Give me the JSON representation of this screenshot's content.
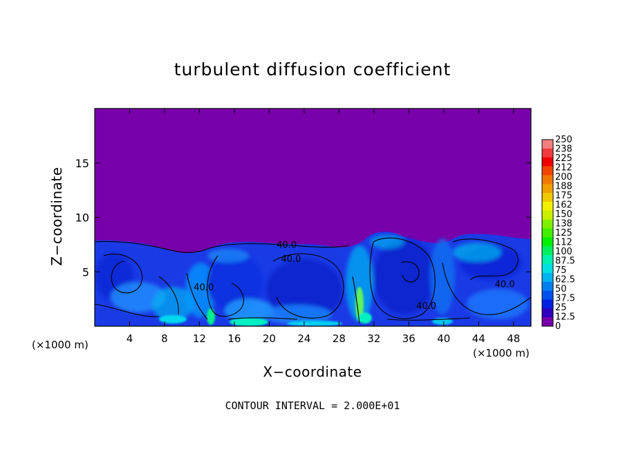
{
  "chart_data": {
    "type": "heatmap",
    "title": "turbulent diffusion coefficient",
    "xlabel": "X−coordinate",
    "ylabel": "Z−coordinate",
    "x_unit": "(×1000 m)",
    "x_ticks": [
      "4",
      "8",
      "12",
      "16",
      "20",
      "24",
      "28",
      "32",
      "36",
      "40",
      "44",
      "48"
    ],
    "x_tick_values": [
      4,
      8,
      12,
      16,
      20,
      24,
      28,
      32,
      36,
      40,
      44,
      48
    ],
    "xlim": [
      0,
      50
    ],
    "y_ticks": [
      "5",
      "10",
      "15"
    ],
    "y_tick_values": [
      5,
      10,
      15
    ],
    "ylim": [
      0,
      20
    ],
    "contour_interval": "CONTOUR INTERVAL = 2.000E+01",
    "contour_labels": [
      {
        "text": "40.0",
        "x": 22.0,
        "z": 7.2
      },
      {
        "text": "40.0",
        "x": 22.5,
        "z": 5.9
      },
      {
        "text": "40.0",
        "x": 12.5,
        "z": 3.3
      },
      {
        "text": "40.0",
        "x": 38.0,
        "z": 1.6
      },
      {
        "text": "40.0",
        "x": 47.0,
        "z": 3.6
      }
    ],
    "colorbar": {
      "labels": [
        "250",
        "238",
        "225",
        "212",
        "200",
        "188",
        "175",
        "162",
        "150",
        "138",
        "125",
        "112",
        "100",
        "87.5",
        "75",
        "62.5",
        "50",
        "37.5",
        "25",
        "12.5",
        "0"
      ],
      "colors": [
        "#f08080",
        "#f03c3c",
        "#f00000",
        "#f04400",
        "#f07800",
        "#f0a000",
        "#f0c800",
        "#f0f000",
        "#c8f000",
        "#80f000",
        "#40f000",
        "#00f000",
        "#00f060",
        "#00f0b0",
        "#00e0e0",
        "#00b4f0",
        "#0080f0",
        "#0050f0",
        "#0020e0",
        "#3000c0",
        "#7800aa"
      ]
    },
    "background_color": "#7800aa"
  },
  "interval_text": "CONTOUR INTERVAL = 2.000E+01"
}
